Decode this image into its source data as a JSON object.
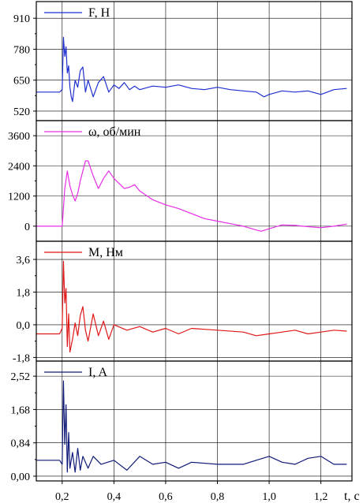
{
  "chart_data": [
    {
      "type": "line",
      "legend": "F, Н",
      "color": "#1f2fd0",
      "ylim": [
        480,
        980
      ],
      "yticks": [
        {
          "v": 520,
          "label": "520"
        },
        {
          "v": 650,
          "label": "650"
        },
        {
          "v": 780,
          "label": "780"
        },
        {
          "v": 910,
          "label": "910"
        }
      ],
      "series": {
        "x": [
          0.1,
          0.15,
          0.19,
          0.2,
          0.205,
          0.21,
          0.215,
          0.22,
          0.225,
          0.23,
          0.235,
          0.24,
          0.25,
          0.26,
          0.27,
          0.28,
          0.29,
          0.3,
          0.32,
          0.34,
          0.36,
          0.38,
          0.4,
          0.42,
          0.44,
          0.46,
          0.48,
          0.5,
          0.55,
          0.6,
          0.65,
          0.7,
          0.75,
          0.8,
          0.85,
          0.9,
          0.95,
          0.98,
          1.0,
          1.05,
          1.1,
          1.15,
          1.2,
          1.25,
          1.3
        ],
        "y": [
          600,
          600,
          600,
          610,
          830,
          750,
          790,
          680,
          710,
          620,
          580,
          560,
          650,
          620,
          690,
          705,
          600,
          650,
          580,
          640,
          665,
          600,
          630,
          615,
          640,
          610,
          625,
          610,
          625,
          620,
          630,
          615,
          610,
          620,
          610,
          605,
          600,
          580,
          590,
          605,
          600,
          605,
          590,
          610,
          615
        ]
      }
    },
    {
      "type": "line",
      "legend": "ω, об/мин",
      "color": "#e62ee6",
      "ylim": [
        -600,
        4200
      ],
      "yticks": [
        {
          "v": 0,
          "label": "0"
        },
        {
          "v": 1200,
          "label": "1200"
        },
        {
          "v": 2400,
          "label": "2400"
        },
        {
          "v": 3600,
          "label": "3600"
        }
      ],
      "series": {
        "x": [
          0.1,
          0.15,
          0.19,
          0.2,
          0.21,
          0.22,
          0.23,
          0.24,
          0.25,
          0.26,
          0.27,
          0.28,
          0.29,
          0.3,
          0.32,
          0.34,
          0.36,
          0.38,
          0.4,
          0.42,
          0.44,
          0.46,
          0.48,
          0.5,
          0.55,
          0.6,
          0.65,
          0.7,
          0.75,
          0.8,
          0.85,
          0.9,
          0.95,
          0.97,
          1.0,
          1.05,
          1.1,
          1.15,
          1.2,
          1.25,
          1.3
        ],
        "y": [
          0,
          0,
          0,
          0,
          1500,
          2200,
          1600,
          1250,
          1000,
          1300,
          1800,
          2200,
          2600,
          2600,
          2000,
          1500,
          1900,
          2200,
          1900,
          1700,
          1500,
          1550,
          1650,
          1400,
          1050,
          850,
          700,
          500,
          300,
          200,
          100,
          0,
          -150,
          -200,
          -100,
          50,
          30,
          -20,
          -60,
          0,
          80
        ]
      }
    },
    {
      "type": "line",
      "legend": "M, Нм",
      "color": "#e01818",
      "ylim": [
        -2.0,
        4.6
      ],
      "yticks": [
        {
          "v": -1.8,
          "label": "-1,8"
        },
        {
          "v": 0,
          "label": "0,0"
        },
        {
          "v": 1.8,
          "label": "1,8"
        },
        {
          "v": 3.6,
          "label": "3,6"
        }
      ],
      "series": {
        "x": [
          0.1,
          0.15,
          0.19,
          0.2,
          0.205,
          0.21,
          0.215,
          0.22,
          0.225,
          0.23,
          0.24,
          0.25,
          0.26,
          0.27,
          0.28,
          0.29,
          0.3,
          0.32,
          0.34,
          0.36,
          0.38,
          0.4,
          0.45,
          0.5,
          0.55,
          0.6,
          0.65,
          0.7,
          0.8,
          0.9,
          0.95,
          1.0,
          1.05,
          1.1,
          1.15,
          1.2,
          1.25,
          1.3
        ],
        "y": [
          -0.5,
          -0.5,
          -0.5,
          -0.2,
          3.5,
          1.2,
          2.0,
          -1.2,
          0.6,
          -1.5,
          -0.8,
          0.1,
          -0.6,
          0.5,
          1.0,
          -0.3,
          -0.9,
          0.6,
          -0.6,
          0.2,
          -0.8,
          0.0,
          -0.3,
          -0.1,
          -0.4,
          -0.2,
          -0.5,
          -0.2,
          -0.3,
          -0.4,
          -0.6,
          -0.5,
          -0.4,
          -0.3,
          -0.5,
          -0.4,
          -0.3,
          -0.35
        ]
      }
    },
    {
      "type": "line",
      "legend": "I, A",
      "color": "#101a78",
      "ylim": [
        -0.12,
        2.9
      ],
      "yticks": [
        {
          "v": 0,
          "label": "0,00"
        },
        {
          "v": 0.84,
          "label": "0,84"
        },
        {
          "v": 1.68,
          "label": "1,68"
        },
        {
          "v": 2.52,
          "label": "2,52"
        }
      ],
      "series": {
        "x": [
          0.1,
          0.15,
          0.19,
          0.2,
          0.205,
          0.21,
          0.215,
          0.22,
          0.225,
          0.23,
          0.24,
          0.25,
          0.26,
          0.27,
          0.28,
          0.3,
          0.32,
          0.35,
          0.4,
          0.45,
          0.5,
          0.55,
          0.6,
          0.65,
          0.7,
          0.8,
          0.9,
          0.95,
          1.0,
          1.05,
          1.1,
          1.15,
          1.2,
          1.25,
          1.3
        ],
        "y": [
          0.4,
          0.4,
          0.4,
          0.3,
          2.4,
          0.8,
          1.8,
          0.1,
          1.1,
          0.2,
          0.6,
          0.1,
          0.7,
          0.15,
          0.5,
          0.2,
          0.5,
          0.3,
          0.4,
          0.15,
          0.5,
          0.3,
          0.35,
          0.2,
          0.35,
          0.3,
          0.3,
          0.4,
          0.5,
          0.35,
          0.3,
          0.45,
          0.5,
          0.3,
          0.3
        ]
      }
    }
  ],
  "x_axis": {
    "title": "t, c",
    "xlim": [
      0.1,
      1.32
    ],
    "ticks": [
      {
        "v": 0.2,
        "label": "0,2"
      },
      {
        "v": 0.4,
        "label": "0,4"
      },
      {
        "v": 0.6,
        "label": "0,6"
      },
      {
        "v": 0.8,
        "label": "0,8"
      },
      {
        "v": 1.0,
        "label": "1,0"
      },
      {
        "v": 1.2,
        "label": "1,2"
      }
    ]
  },
  "grid": true
}
